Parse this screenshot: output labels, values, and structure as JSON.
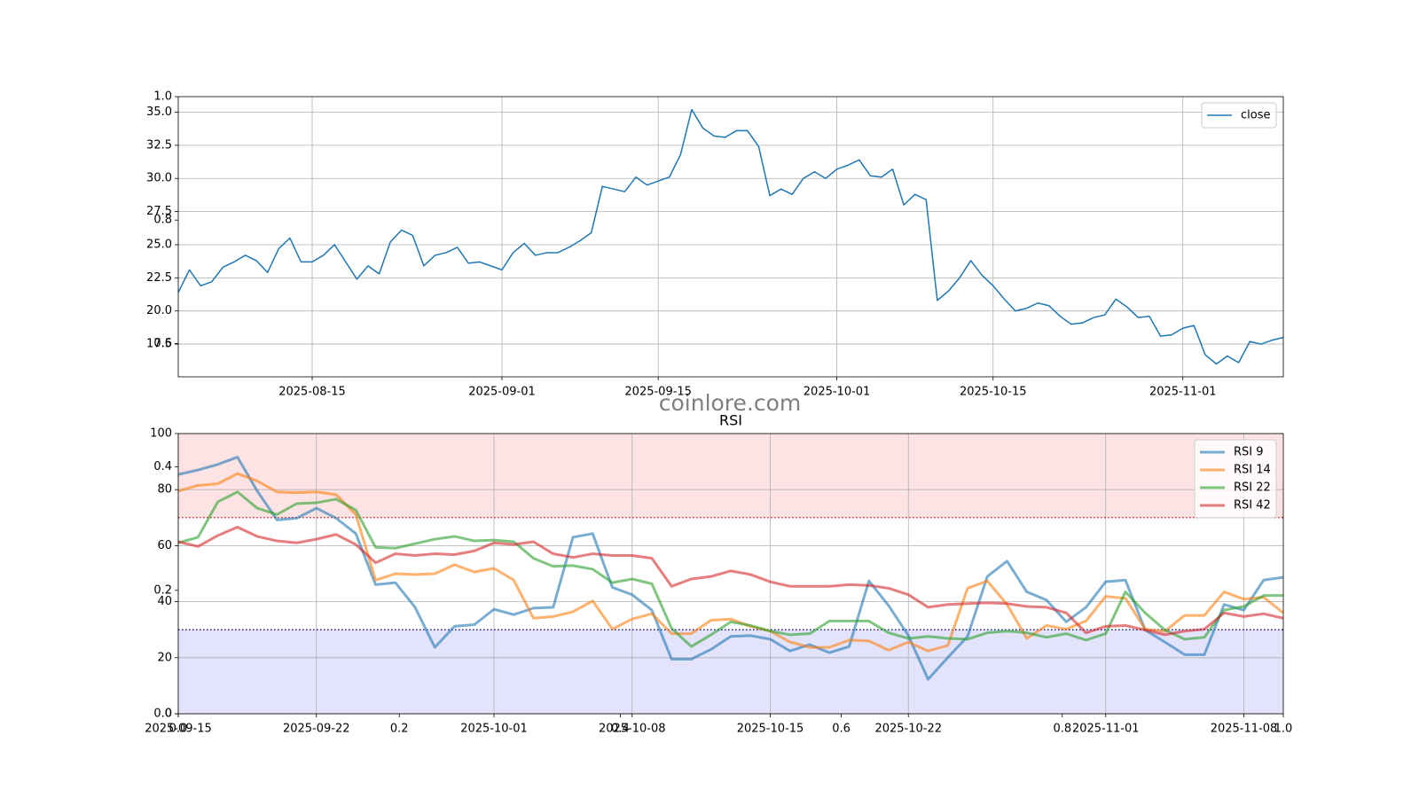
{
  "watermark": "coinlore.com",
  "chart_data": [
    {
      "type": "line",
      "x": [
        "2025-08-03",
        "2025-08-04",
        "2025-08-05",
        "2025-08-06",
        "2025-08-07",
        "2025-08-08",
        "2025-08-09",
        "2025-08-10",
        "2025-08-11",
        "2025-08-12",
        "2025-08-13",
        "2025-08-14",
        "2025-08-15",
        "2025-08-16",
        "2025-08-17",
        "2025-08-18",
        "2025-08-19",
        "2025-08-20",
        "2025-08-21",
        "2025-08-22",
        "2025-08-23",
        "2025-08-24",
        "2025-08-25",
        "2025-08-26",
        "2025-08-27",
        "2025-08-28",
        "2025-08-29",
        "2025-08-30",
        "2025-08-31",
        "2025-09-01",
        "2025-09-02",
        "2025-09-03",
        "2025-09-04",
        "2025-09-05",
        "2025-09-06",
        "2025-09-07",
        "2025-09-08",
        "2025-09-09",
        "2025-09-10",
        "2025-09-11",
        "2025-09-12",
        "2025-09-13",
        "2025-09-14",
        "2025-09-15",
        "2025-09-16",
        "2025-09-17",
        "2025-09-18",
        "2025-09-19",
        "2025-09-20",
        "2025-09-21",
        "2025-09-22",
        "2025-09-23",
        "2025-09-24",
        "2025-09-25",
        "2025-09-26",
        "2025-09-27",
        "2025-09-28",
        "2025-09-29",
        "2025-09-30",
        "2025-10-01",
        "2025-10-02",
        "2025-10-03",
        "2025-10-04",
        "2025-10-05",
        "2025-10-06",
        "2025-10-07",
        "2025-10-08",
        "2025-10-09",
        "2025-10-10",
        "2025-10-11",
        "2025-10-12",
        "2025-10-13",
        "2025-10-14",
        "2025-10-15",
        "2025-10-16",
        "2025-10-17",
        "2025-10-18",
        "2025-10-19",
        "2025-10-20",
        "2025-10-21",
        "2025-10-22",
        "2025-10-23",
        "2025-10-24",
        "2025-10-25",
        "2025-10-26",
        "2025-10-27",
        "2025-10-28",
        "2025-10-29",
        "2025-10-30",
        "2025-10-31",
        "2025-11-01",
        "2025-11-02",
        "2025-11-03",
        "2025-11-04",
        "2025-11-05",
        "2025-11-06",
        "2025-11-07",
        "2025-11-08",
        "2025-11-09",
        "2025-11-10"
      ],
      "series": [
        {
          "name": "close",
          "color": "#1f77b4",
          "values": [
            21.4,
            23.1,
            21.9,
            22.2,
            23.3,
            23.7,
            24.2,
            23.8,
            22.9,
            24.7,
            25.5,
            23.7,
            23.7,
            24.2,
            25.0,
            23.7,
            22.4,
            23.4,
            22.8,
            25.2,
            26.1,
            25.7,
            23.4,
            24.2,
            24.4,
            24.8,
            23.6,
            23.7,
            23.4,
            23.1,
            24.4,
            25.1,
            24.2,
            24.4,
            24.4,
            24.8,
            25.3,
            25.9,
            29.4,
            29.2,
            29.0,
            30.1,
            29.5,
            29.8,
            30.1,
            31.8,
            35.2,
            33.8,
            33.2,
            33.1,
            33.6,
            33.6,
            32.4,
            28.7,
            29.2,
            28.8,
            30.0,
            30.5,
            30.0,
            30.7,
            31.0,
            31.4,
            30.2,
            30.1,
            30.7,
            28.0,
            28.8,
            28.4,
            20.8,
            21.5,
            22.5,
            23.8,
            22.7,
            21.9,
            20.9,
            20.0,
            20.2,
            20.6,
            20.4,
            19.6,
            19.0,
            19.1,
            19.5,
            19.7,
            20.9,
            20.3,
            19.5,
            19.6,
            18.1,
            18.2,
            18.7,
            18.9,
            16.7,
            16.0,
            16.6,
            16.1,
            17.7,
            17.5,
            17.8,
            18.0
          ]
        }
      ],
      "xlim": [
        "2025-08-03",
        "2025-11-10"
      ],
      "xticks": [
        "2025-08-15",
        "2025-09-01",
        "2025-09-15",
        "2025-10-01",
        "2025-10-15",
        "2025-11-01"
      ],
      "ylim": [
        15.03,
        36.17
      ],
      "yticks": [
        17.5,
        {
          "value": 20,
          "label": "20.0"
        },
        22.5,
        {
          "value": 25,
          "label": "25.0"
        },
        27.5,
        {
          "value": 30,
          "label": "30.0"
        },
        32.5,
        {
          "value": 35,
          "label": "35.0"
        }
      ],
      "grid": true,
      "legend": "upper right",
      "line_width": 1.5,
      "alpha": 1
    },
    {
      "type": "line",
      "title": "RSI",
      "x": [
        "2025-09-15",
        "2025-09-16",
        "2025-09-17",
        "2025-09-18",
        "2025-09-19",
        "2025-09-20",
        "2025-09-21",
        "2025-09-22",
        "2025-09-23",
        "2025-09-24",
        "2025-09-25",
        "2025-09-26",
        "2025-09-27",
        "2025-09-28",
        "2025-09-29",
        "2025-09-30",
        "2025-10-01",
        "2025-10-02",
        "2025-10-03",
        "2025-10-04",
        "2025-10-05",
        "2025-10-06",
        "2025-10-07",
        "2025-10-08",
        "2025-10-09",
        "2025-10-10",
        "2025-10-11",
        "2025-10-12",
        "2025-10-13",
        "2025-10-14",
        "2025-10-15",
        "2025-10-16",
        "2025-10-17",
        "2025-10-18",
        "2025-10-19",
        "2025-10-20",
        "2025-10-21",
        "2025-10-22",
        "2025-10-23",
        "2025-10-24",
        "2025-10-25",
        "2025-10-26",
        "2025-10-27",
        "2025-10-28",
        "2025-10-29",
        "2025-10-30",
        "2025-10-31",
        "2025-11-01",
        "2025-11-02",
        "2025-11-03",
        "2025-11-04",
        "2025-11-05",
        "2025-11-06",
        "2025-11-07",
        "2025-11-08",
        "2025-11-09",
        "2025-11-10"
      ],
      "series": [
        {
          "name": "RSI 9",
          "color": "#1f77b4",
          "values": [
            85.4,
            87,
            89,
            91.6,
            79.5,
            69.2,
            69.8,
            73.4,
            69.8,
            64.3,
            46.1,
            46.8,
            38,
            23.7,
            31.2,
            31.8,
            37.3,
            35.4,
            37.7,
            38,
            63,
            64.3,
            45.1,
            42.5,
            37,
            19.5,
            19.5,
            23,
            27.6,
            27.9,
            26.6,
            22.4,
            24.7,
            21.8,
            24,
            47.4,
            38.6,
            27.9,
            12.3,
            20.1,
            27.6,
            49,
            54.5,
            43.5,
            40.6,
            32.8,
            38,
            47.1,
            47.7,
            29.9,
            25.6,
            21.1,
            21.1,
            39,
            37,
            47.7,
            48.7
          ]
        },
        {
          "name": "RSI 14",
          "color": "#ff7f0e",
          "values": [
            79.5,
            81.5,
            82.1,
            85.7,
            83.1,
            79.2,
            78.9,
            79.2,
            78.2,
            71.1,
            47.7,
            50,
            49.7,
            50,
            53.2,
            50.6,
            51.9,
            47.7,
            34.1,
            34.7,
            36.4,
            40.3,
            30.2,
            33.8,
            35.7,
            28.6,
            28.6,
            33.4,
            33.8,
            31.2,
            29.5,
            25.6,
            23.7,
            23.7,
            26.3,
            26,
            22.7,
            25.6,
            22.4,
            24.4,
            44.8,
            47.4,
            39,
            26.9,
            31.5,
            30.2,
            33.1,
            41.9,
            41.2,
            30.2,
            29.5,
            35.1,
            35.1,
            43.5,
            40.9,
            41.6,
            36
          ]
        },
        {
          "name": "RSI 22",
          "color": "#2ca02c",
          "values": [
            61,
            63,
            75.6,
            79.2,
            73.4,
            71.1,
            75,
            75.3,
            76.6,
            72.7,
            59.4,
            59.1,
            60.7,
            62.3,
            63.3,
            61.7,
            62,
            61.4,
            55.5,
            52.6,
            52.9,
            51.6,
            46.8,
            48.1,
            46.4,
            30.5,
            24,
            28.2,
            32.8,
            31.5,
            29.5,
            28.2,
            28.6,
            33.1,
            33.1,
            33.1,
            28.9,
            26.9,
            27.6,
            26.9,
            26.6,
            28.9,
            29.5,
            28.9,
            27.3,
            28.6,
            26.3,
            28.6,
            43.5,
            36,
            29.9,
            26.6,
            27.3,
            37,
            38.3,
            42.2,
            42.2
          ]
        },
        {
          "name": "RSI 42",
          "color": "#d62728",
          "values": [
            61.4,
            59.7,
            63.6,
            66.6,
            63.3,
            61.7,
            61,
            62.3,
            64,
            60.4,
            53.9,
            57.1,
            56.5,
            57.1,
            56.8,
            58.1,
            61,
            60.4,
            61.4,
            57.1,
            55.8,
            57.1,
            56.5,
            56.5,
            55.5,
            45.5,
            48.1,
            49,
            51,
            49.7,
            47.1,
            45.5,
            45.5,
            45.5,
            46.1,
            45.8,
            44.8,
            42.5,
            38,
            39,
            39.3,
            39.6,
            39.3,
            38.3,
            38,
            36,
            28.9,
            31.2,
            31.5,
            29.9,
            28.2,
            29.5,
            30.2,
            36,
            34.7,
            35.7,
            34.1
          ]
        }
      ],
      "xlim": [
        "2025-09-15",
        "2025-11-10"
      ],
      "xticks": [
        "2025-09-15",
        "2025-09-22",
        "2025-10-01",
        "2025-10-08",
        "2025-10-15",
        "2025-10-22",
        "2025-11-01",
        "2025-11-08"
      ],
      "ylim": [
        0,
        100
      ],
      "yticks": [
        0,
        20,
        40,
        60,
        80,
        100
      ],
      "zones": [
        {
          "from": 70,
          "to": 100,
          "color": "#fde3e3"
        },
        {
          "from": 0,
          "to": 30,
          "color": "#e3e3fb"
        }
      ],
      "hlines": [
        {
          "value": 70,
          "color": "#d62728"
        },
        {
          "value": 30,
          "color": "#1a1aa0"
        }
      ],
      "grid": true,
      "legend": "upper right",
      "line_width": 3,
      "alpha": 0.6
    },
    {
      "type": "axes",
      "xlim": [
        0,
        1
      ],
      "ylim": [
        0,
        1
      ],
      "xticks": [
        {
          "value": 0,
          "label": "0.0"
        },
        0.2,
        0.4,
        0.6,
        0.8,
        {
          "value": 1,
          "label": "1.0"
        }
      ],
      "yticks": [
        {
          "value": 0,
          "label": "0.0"
        },
        0.2,
        0.4,
        0.6,
        0.8,
        {
          "value": 1,
          "label": "1.0"
        }
      ]
    }
  ]
}
